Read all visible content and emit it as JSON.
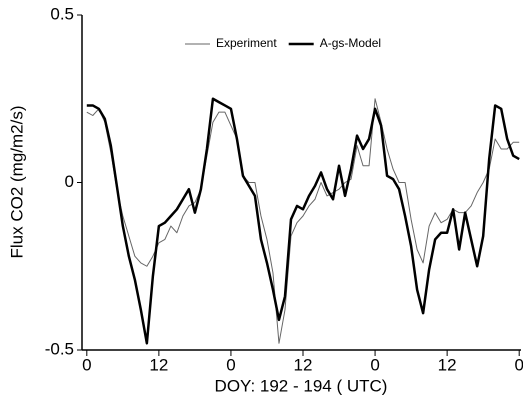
{
  "chart_data": {
    "type": "line",
    "xlabel": "DOY: 192 - 194 ( UTC)",
    "ylabel": "Flux CO2 (mg/m2/s)",
    "x": [
      0,
      1,
      2,
      3,
      4,
      5,
      6,
      7,
      8,
      9,
      10,
      11,
      12,
      13,
      14,
      15,
      16,
      17,
      18,
      19,
      20,
      21,
      22,
      23,
      24,
      25,
      26,
      27,
      28,
      29,
      30,
      31,
      32,
      33,
      34,
      35,
      36,
      37,
      38,
      39,
      40,
      41,
      42,
      43,
      44,
      45,
      46,
      47,
      48,
      49,
      50,
      51,
      52,
      53,
      54,
      55,
      56,
      57,
      58,
      59,
      60,
      61,
      62,
      63,
      64,
      65,
      66,
      67,
      68,
      69,
      70,
      71,
      72
    ],
    "series": [
      {
        "name": "Experiment",
        "color": "#666666",
        "values": [
          0.21,
          0.2,
          0.22,
          0.18,
          0.09,
          -0.02,
          -0.1,
          -0.16,
          -0.22,
          -0.24,
          -0.25,
          -0.22,
          -0.18,
          -0.17,
          -0.13,
          -0.15,
          -0.1,
          -0.07,
          -0.06,
          -0.02,
          0.08,
          0.18,
          0.21,
          0.21,
          0.17,
          0.13,
          0.02,
          0.0,
          0.0,
          -0.1,
          -0.17,
          -0.27,
          -0.48,
          -0.38,
          -0.16,
          -0.12,
          -0.1,
          -0.07,
          -0.05,
          0.0,
          -0.04,
          -0.03,
          -0.02,
          0.0,
          0.01,
          0.11,
          0.05,
          0.05,
          0.25,
          0.18,
          0.1,
          0.04,
          0.0,
          0.0,
          -0.11,
          -0.2,
          -0.24,
          -0.13,
          -0.09,
          -0.12,
          -0.11,
          -0.08,
          -0.09,
          -0.09,
          -0.07,
          -0.03,
          0.0,
          0.04,
          0.13,
          0.1,
          0.1,
          0.12,
          0.12
        ]
      },
      {
        "name": "A-gs-Model",
        "color": "#000000",
        "values": [
          0.23,
          0.23,
          0.22,
          0.19,
          0.11,
          -0.01,
          -0.13,
          -0.22,
          -0.29,
          -0.38,
          -0.48,
          -0.28,
          -0.13,
          -0.12,
          -0.1,
          -0.08,
          -0.05,
          -0.02,
          -0.09,
          -0.02,
          0.1,
          0.25,
          0.24,
          0.23,
          0.22,
          0.13,
          0.02,
          -0.01,
          -0.04,
          -0.17,
          -0.24,
          -0.32,
          -0.41,
          -0.34,
          -0.11,
          -0.07,
          -0.08,
          -0.04,
          -0.01,
          0.03,
          -0.02,
          -0.05,
          0.05,
          -0.04,
          0.04,
          0.14,
          0.1,
          0.13,
          0.22,
          0.17,
          0.02,
          0.01,
          -0.02,
          -0.1,
          -0.19,
          -0.32,
          -0.39,
          -0.26,
          -0.17,
          -0.15,
          -0.15,
          -0.08,
          -0.2,
          -0.09,
          -0.17,
          -0.25,
          -0.16,
          0.07,
          0.23,
          0.22,
          0.13,
          0.08,
          0.07
        ]
      }
    ],
    "xlim": [
      -0.8,
      72.3
    ],
    "ylim": [
      -0.5,
      0.5
    ],
    "xticks": [
      0,
      12,
      {
        "value": 24,
        "label": "0"
      },
      {
        "value": 36,
        "label": "12"
      },
      {
        "value": 48,
        "label": "0"
      },
      {
        "value": 60,
        "label": "12"
      },
      {
        "value": 72,
        "label": "0"
      }
    ],
    "yticks": [
      -0.5,
      0,
      0.5
    ],
    "legend": "top"
  }
}
